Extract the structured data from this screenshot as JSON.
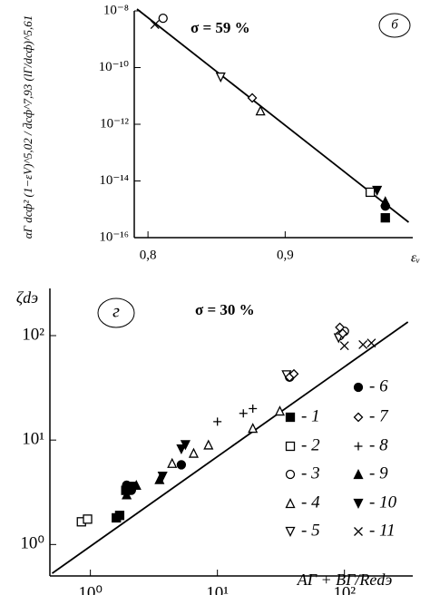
{
  "chart_data": [
    {
      "type": "scatter",
      "panel": "б",
      "annotation": "σ = 59 %",
      "y_label": "αГ dсф² (1−εV)^5,02 / d̄сф^7,93 (lГ/dсф)^5,61",
      "x_label": "εᵥ",
      "xscale": "linear",
      "yscale": "log",
      "xlim": [
        0.79,
        0.993
      ],
      "ylim": [
        1e-16,
        1e-08
      ],
      "xticks": [
        {
          "value": 0.8,
          "label": "0,8"
        },
        {
          "value": 0.9,
          "label": "0,9"
        }
      ],
      "yticks": [
        {
          "value": 1e-16,
          "label": "10⁻¹⁶"
        },
        {
          "value": 1e-14,
          "label": "10⁻¹⁴"
        },
        {
          "value": 1e-12,
          "label": "10⁻¹²"
        },
        {
          "value": 1e-10,
          "label": "10⁻¹⁰"
        },
        {
          "value": 1e-08,
          "label": "10⁻⁸"
        }
      ],
      "series": [
        {
          "marker": "square-filled",
          "color": "#000",
          "x": [
            0.973
          ],
          "y": [
            5e-16
          ]
        },
        {
          "marker": "square-open",
          "color": "#000",
          "x": [
            0.962
          ],
          "y": [
            4e-15
          ]
        },
        {
          "marker": "circle-open",
          "color": "#000",
          "x": [
            0.811
          ],
          "y": [
            5.5e-09
          ]
        },
        {
          "marker": "triangle-open",
          "color": "#000",
          "x": [
            0.882
          ],
          "y": [
            3e-12
          ]
        },
        {
          "marker": "triangle-down-open",
          "color": "#000",
          "x": [
            0.853
          ],
          "y": [
            4.6e-11
          ]
        },
        {
          "marker": "circle-filled",
          "color": "#000",
          "x": [
            0.973
          ],
          "y": [
            1.3e-15
          ]
        },
        {
          "marker": "diamond-open",
          "color": "#000",
          "x": [
            0.876
          ],
          "y": [
            8.5e-12
          ]
        },
        {
          "marker": "triangle-filled",
          "color": "#000",
          "x": [
            0.973
          ],
          "y": [
            1.9e-15
          ]
        },
        {
          "marker": "triangle-down-filled",
          "color": "#000",
          "x": [
            0.967
          ],
          "y": [
            4.6e-15
          ]
        },
        {
          "marker": "cross",
          "color": "#000",
          "x": [
            0.805
          ],
          "y": [
            3.3e-09
          ]
        }
      ],
      "fit": {
        "color": "#000",
        "x": [
          0.792,
          0.99
        ],
        "y": [
          1.16e-08,
          3.5e-16
        ]
      }
    },
    {
      "type": "scatter",
      "panel": "г",
      "annotation": "σ = 30 %",
      "y_label": "ζdэ",
      "x_label": "AГ + BГ/Redэ",
      "xscale": "log",
      "yscale": "log",
      "xlim": [
        0.48,
        345
      ],
      "ylim": [
        0.5,
        283
      ],
      "xticks": [
        {
          "value": 1,
          "label": "10⁰"
        },
        {
          "value": 10,
          "label": "10¹"
        },
        {
          "value": 100,
          "label": "10²"
        }
      ],
      "yticks": [
        {
          "value": 1,
          "label": "10⁰"
        },
        {
          "value": 10,
          "label": "10¹"
        },
        {
          "value": 100,
          "label": "10²"
        }
      ],
      "series": [
        {
          "name": "- 1",
          "marker": "square-filled",
          "color": "#000",
          "x": [
            1.6,
            1.7,
            1.9,
            2.1
          ],
          "y": [
            1.8,
            1.9,
            3.3,
            3.6
          ]
        },
        {
          "name": "- 2",
          "marker": "square-open",
          "color": "#000",
          "x": [
            0.85,
            0.95
          ],
          "y": [
            1.65,
            1.75
          ]
        },
        {
          "name": "- 3",
          "marker": "circle-open",
          "color": "#000",
          "x": [
            37,
            92,
            100
          ],
          "y": [
            40,
            100,
            110
          ]
        },
        {
          "name": "- 4",
          "marker": "triangle-open",
          "color": "#000",
          "x": [
            4.4,
            6.5,
            8.5,
            19,
            31
          ],
          "y": [
            6,
            7.5,
            9,
            13,
            19
          ]
        },
        {
          "name": "- 5",
          "marker": "triangle-down-open",
          "color": "#000",
          "x": [
            35,
            90
          ],
          "y": [
            42,
            95
          ]
        },
        {
          "name": "- 6",
          "marker": "circle-filled",
          "color": "#000",
          "x": [
            1.93,
            2.1,
            5.2
          ],
          "y": [
            3.7,
            3.3,
            5.8
          ]
        },
        {
          "name": "- 7",
          "marker": "diamond-open",
          "color": "#000",
          "x": [
            37,
            40,
            92,
            97
          ],
          "y": [
            40,
            43,
            120,
            105
          ]
        },
        {
          "name": "- 8",
          "marker": "plus",
          "color": "#000",
          "x": [
            10,
            16,
            19
          ],
          "y": [
            15,
            18,
            20
          ]
        },
        {
          "name": "- 9",
          "marker": "triangle-filled",
          "color": "#000",
          "x": [
            1.93,
            2.3,
            3.5
          ],
          "y": [
            3,
            3.7,
            4.2
          ]
        },
        {
          "name": "- 10",
          "marker": "triangle-down-filled",
          "color": "#000",
          "x": [
            3.7,
            5.2,
            5.6
          ],
          "y": [
            4.5,
            8.2,
            9
          ]
        },
        {
          "name": "- 11",
          "marker": "cross",
          "color": "#000",
          "x": [
            100,
            140,
            163
          ],
          "y": [
            80,
            82,
            85
          ]
        }
      ],
      "fit": {
        "color": "#000",
        "x": [
          0.5,
          316
        ],
        "y": [
          0.53,
          135
        ]
      }
    }
  ]
}
